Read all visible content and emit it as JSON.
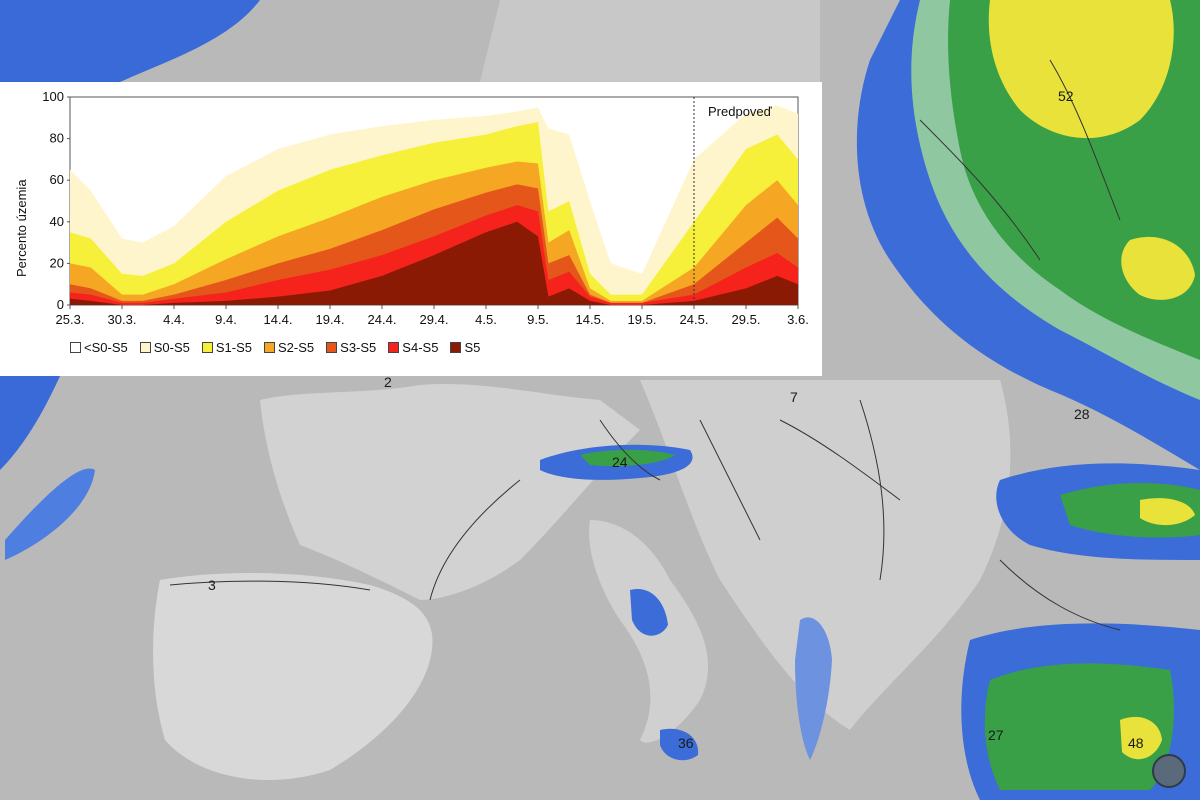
{
  "map": {
    "value_labels": [
      "52",
      "28",
      "24",
      "7",
      "2",
      "3",
      "36",
      "27",
      "48"
    ],
    "colors": {
      "sea_gray": "#b9b9b9",
      "land_gray": "#d4d4d4",
      "blue": "#2c5fd6",
      "light_blue": "#8fb6e8",
      "green": "#2e9a3a",
      "light_green": "#7dcc6e",
      "yellow": "#e6e23a"
    }
  },
  "chart_data": {
    "type": "area",
    "ylabel": "Percento územia",
    "ylim": [
      0,
      100
    ],
    "yticks": [
      "0",
      "20",
      "40",
      "60",
      "80",
      "100"
    ],
    "xticks": [
      "25.3.",
      "30.3.",
      "4.4.",
      "9.4.",
      "14.4.",
      "19.4.",
      "24.4.",
      "29.4.",
      "4.5.",
      "9.5.",
      "14.5.",
      "19.5.",
      "24.5.",
      "29.5.",
      "3.6."
    ],
    "forecast_label": "Predpoveď",
    "forecast_start": "24.5.",
    "x": [
      "25.3.",
      "27.3.",
      "30.3.",
      "1.4.",
      "4.4.",
      "9.4.",
      "14.4.",
      "19.4.",
      "24.4.",
      "29.4.",
      "4.5.",
      "7.5.",
      "9.5.",
      "10.5.",
      "12.5.",
      "14.5.",
      "16.5.",
      "19.5.",
      "24.5.",
      "29.5.",
      "1.6.",
      "3.6."
    ],
    "series": [
      {
        "name": "S0-S5",
        "color": "#fff5cc",
        "values": [
          65,
          55,
          32,
          30,
          38,
          62,
          75,
          82,
          86,
          89,
          91,
          93,
          95,
          85,
          82,
          50,
          20,
          15,
          70,
          92,
          96,
          92
        ]
      },
      {
        "name": "S1-S5",
        "color": "#f6f03a",
        "values": [
          35,
          32,
          15,
          14,
          20,
          40,
          55,
          65,
          72,
          78,
          82,
          86,
          88,
          45,
          50,
          15,
          5,
          5,
          40,
          75,
          82,
          70
        ]
      },
      {
        "name": "S2-S5",
        "color": "#f5a623",
        "values": [
          20,
          18,
          5,
          5,
          10,
          22,
          33,
          42,
          52,
          60,
          66,
          69,
          68,
          30,
          36,
          8,
          2,
          2,
          18,
          48,
          60,
          48
        ]
      },
      {
        "name": "S3-S5",
        "color": "#e4561a",
        "values": [
          10,
          8,
          2,
          2,
          5,
          12,
          20,
          27,
          36,
          46,
          54,
          58,
          56,
          20,
          24,
          5,
          1,
          1,
          10,
          30,
          42,
          32
        ]
      },
      {
        "name": "S4-S5",
        "color": "#f5231c",
        "values": [
          6,
          5,
          1,
          1,
          3,
          6,
          12,
          17,
          24,
          33,
          43,
          48,
          45,
          12,
          16,
          4,
          1,
          1,
          5,
          18,
          25,
          18
        ]
      },
      {
        "name": "S5",
        "color": "#8b1a05",
        "values": [
          3,
          2,
          0,
          0,
          1,
          2,
          4,
          7,
          14,
          24,
          35,
          40,
          33,
          4,
          8,
          2,
          0,
          0,
          2,
          8,
          14,
          10
        ]
      }
    ],
    "legend": [
      {
        "label": "<S0-S5",
        "color": "#ffffff"
      },
      {
        "label": "S0-S5",
        "color": "#fff5cc"
      },
      {
        "label": "S1-S5",
        "color": "#f6f03a"
      },
      {
        "label": "S2-S5",
        "color": "#f5a623"
      },
      {
        "label": "S3-S5",
        "color": "#e4561a"
      },
      {
        "label": "S4-S5",
        "color": "#f5231c"
      },
      {
        "label": "S5",
        "color": "#8b1a05"
      }
    ]
  }
}
